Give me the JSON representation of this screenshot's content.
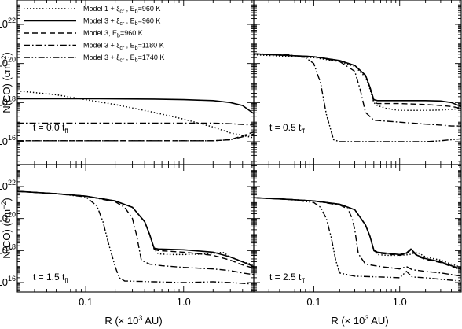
{
  "chart_data": {
    "type": "line",
    "ylabel": "N(CO)  (cm",
    "ylabel_sup": "−2",
    "ylabel_close": ")",
    "xlabel": "R  (× 10",
    "xlabel_sup": "3",
    "xlabel_close": " AU)",
    "x_scale": "log",
    "y_scale": "log",
    "xlim": [
      0.02,
      5.2
    ],
    "ylim": [
      5000000000000000.0,
      1e+23
    ],
    "x_ticks": [
      {
        "v": 0.1,
        "label": "0.1"
      },
      {
        "v": 1.0,
        "label": "1.0"
      }
    ],
    "y_ticks": [
      {
        "v": 1e+16,
        "base": "10",
        "exp": "16"
      },
      {
        "v": 1e+18,
        "base": "10",
        "exp": "18"
      },
      {
        "v": 1e+20,
        "base": "10",
        "exp": "20"
      },
      {
        "v": 1e+22,
        "base": "10",
        "exp": "22"
      }
    ],
    "legend": [
      {
        "style": "dotted",
        "text": "Model 1 + ξ",
        "sub": "cr",
        "rest": " , E",
        "esub": "b",
        "eval": "=960 K"
      },
      {
        "style": "solid",
        "text": "Model 3 + ξ",
        "sub": "cr",
        "rest": " , E",
        "esub": "b",
        "eval": "=960 K"
      },
      {
        "style": "dashed",
        "text": "Model 3, E",
        "sub": "",
        "rest": "",
        "esub": "b",
        "eval": "=960  K"
      },
      {
        "style": "dashdot",
        "text": "Model 3 + ξ",
        "sub": "cr",
        "rest": " , E",
        "esub": "b",
        "eval": "=1180 K"
      },
      {
        "style": "dashdotdot",
        "text": "Model 3 + ξ",
        "sub": "cr",
        "rest": " , E",
        "esub": "b",
        "eval": "=1740 K"
      }
    ],
    "panels": [
      {
        "time": "t = 0.0 t",
        "time_sub": "ff",
        "series": [
          {
            "style": "dotted",
            "x": [
              0.02,
              0.05,
              0.1,
              0.2,
              0.5,
              1,
              2,
              3,
              5.2
            ],
            "logy": [
              18.6,
              18.4,
              18.15,
              17.9,
              17.5,
              17.15,
              16.75,
              16.45,
              16.2
            ]
          },
          {
            "style": "solid",
            "x": [
              0.02,
              0.1,
              0.5,
              1,
              2,
              3,
              4,
              5,
              5.2
            ],
            "logy": [
              18.2,
              18.2,
              18.18,
              18.15,
              18.1,
              18.0,
              17.85,
              17.5,
              17.45
            ]
          },
          {
            "style": "dashed",
            "x": [
              0.02,
              0.5,
              1,
              2,
              3,
              4,
              5.2
            ],
            "logy": [
              16.05,
              16.05,
              16.05,
              16.05,
              16.1,
              16.3,
              16.5
            ]
          },
          {
            "style": "dashdot",
            "x": [
              0.02,
              0.5,
              1,
              2,
              3,
              5.2
            ],
            "logy": [
              16.95,
              16.95,
              16.95,
              16.95,
              16.92,
              16.85
            ]
          },
          {
            "style": "dashdotdot",
            "x": [
              0.02,
              1,
              2,
              3,
              4,
              5.2
            ],
            "logy": [
              16.05,
              16.05,
              16.05,
              16.1,
              16.25,
              16.4
            ]
          }
        ]
      },
      {
        "time": "t = 0.5 t",
        "time_sub": "ff",
        "series": [
          {
            "style": "dotted",
            "x": [
              0.02,
              0.1,
              0.2,
              0.3,
              0.4,
              0.45,
              0.5,
              0.55,
              0.7,
              1,
              2,
              3,
              4,
              5.2
            ],
            "logy": [
              20.45,
              20.3,
              20.1,
              19.85,
              19.3,
              18.7,
              18.0,
              17.85,
              17.7,
              17.6,
              17.6,
              17.62,
              17.65,
              17.7
            ]
          },
          {
            "style": "solid",
            "x": [
              0.02,
              0.1,
              0.2,
              0.3,
              0.4,
              0.45,
              0.5,
              0.55,
              1,
              2,
              3,
              4,
              5.2
            ],
            "logy": [
              20.5,
              20.35,
              20.15,
              19.9,
              19.4,
              18.8,
              18.15,
              18.1,
              18.1,
              18.1,
              18.08,
              18.0,
              17.8
            ]
          },
          {
            "style": "dashed",
            "x": [
              0.02,
              0.1,
              0.2,
              0.3,
              0.4,
              0.45,
              0.5,
              0.55,
              1,
              2,
              3,
              4,
              5.2
            ],
            "logy": [
              20.5,
              20.35,
              20.15,
              19.9,
              19.4,
              18.8,
              18.05,
              17.95,
              17.95,
              17.9,
              17.85,
              17.8,
              17.7
            ]
          },
          {
            "style": "dashdot",
            "x": [
              0.02,
              0.1,
              0.2,
              0.3,
              0.35,
              0.4,
              0.5,
              1,
              2,
              3,
              4,
              5.2
            ],
            "logy": [
              20.5,
              20.35,
              20.1,
              19.6,
              18.6,
              17.5,
              17.1,
              17.0,
              16.9,
              16.85,
              16.8,
              16.8
            ]
          },
          {
            "style": "dashdotdot",
            "x": [
              0.02,
              0.05,
              0.08,
              0.1,
              0.12,
              0.14,
              0.17,
              0.2,
              0.5,
              1,
              2,
              3,
              4,
              5.2
            ],
            "logy": [
              20.5,
              20.45,
              20.3,
              20.0,
              19.0,
              17.4,
              16.1,
              16.0,
              16.0,
              16.0,
              16.0,
              16.05,
              16.1,
              16.15
            ]
          }
        ]
      },
      {
        "time": "t = 1.5 t",
        "time_sub": "ff",
        "series": [
          {
            "style": "dotted",
            "x": [
              0.02,
              0.05,
              0.1,
              0.2,
              0.3,
              0.4,
              0.45,
              0.5,
              0.55,
              0.7,
              1,
              2,
              2.5,
              3,
              4,
              5.2
            ],
            "logy": [
              21.7,
              21.55,
              21.4,
              21.1,
              20.7,
              19.8,
              19.0,
              18.1,
              17.8,
              17.75,
              17.75,
              17.8,
              17.9,
              17.6,
              17.3,
              17.1
            ]
          },
          {
            "style": "solid",
            "x": [
              0.02,
              0.05,
              0.1,
              0.2,
              0.3,
              0.4,
              0.45,
              0.5,
              0.55,
              1,
              2,
              3,
              4,
              5.2
            ],
            "logy": [
              21.7,
              21.55,
              21.4,
              21.1,
              20.7,
              19.8,
              19.0,
              18.15,
              18.1,
              18.05,
              17.9,
              17.6,
              17.3,
              17.0
            ]
          },
          {
            "style": "dashed",
            "x": [
              0.02,
              0.05,
              0.1,
              0.2,
              0.3,
              0.4,
              0.45,
              0.5,
              0.55,
              1,
              2,
              3,
              4,
              5.2
            ],
            "logy": [
              21.7,
              21.55,
              21.4,
              21.1,
              20.7,
              19.8,
              19.0,
              18.1,
              18.0,
              17.9,
              17.7,
              17.4,
              17.1,
              16.9
            ]
          },
          {
            "style": "dashdot",
            "x": [
              0.02,
              0.05,
              0.1,
              0.2,
              0.25,
              0.3,
              0.33,
              0.37,
              0.45,
              0.6,
              1,
              2,
              3,
              4,
              5.2
            ],
            "logy": [
              21.7,
              21.55,
              21.4,
              21.05,
              20.7,
              20.0,
              19.0,
              17.4,
              17.15,
              17.05,
              16.95,
              16.85,
              16.75,
              16.6,
              16.5
            ]
          },
          {
            "style": "dashdotdot",
            "x": [
              0.02,
              0.05,
              0.1,
              0.13,
              0.15,
              0.17,
              0.2,
              0.22,
              0.25,
              0.5,
              1,
              2,
              3,
              4,
              5.2
            ],
            "logy": [
              21.7,
              21.55,
              21.35,
              20.8,
              19.8,
              18.5,
              17.0,
              16.3,
              16.1,
              16.05,
              16.0,
              16.05,
              16.0,
              15.95,
              15.9
            ]
          }
        ]
      },
      {
        "time": "t = 2.5 t",
        "time_sub": "ff",
        "series": [
          {
            "style": "dotted",
            "x": [
              0.02,
              0.05,
              0.1,
              0.2,
              0.3,
              0.4,
              0.45,
              0.5,
              0.55,
              0.7,
              1,
              1.3,
              1.6,
              2,
              3,
              4,
              5.2
            ],
            "logy": [
              21.3,
              21.2,
              21.1,
              20.9,
              20.55,
              19.6,
              18.9,
              18.0,
              17.75,
              17.7,
              17.7,
              17.75,
              17.9,
              17.6,
              17.4,
              17.15,
              16.95
            ]
          },
          {
            "style": "solid",
            "x": [
              0.02,
              0.05,
              0.1,
              0.2,
              0.3,
              0.4,
              0.45,
              0.5,
              0.55,
              1,
              1.2,
              1.35,
              1.6,
              2,
              3,
              4,
              5.2
            ],
            "logy": [
              21.3,
              21.2,
              21.1,
              20.9,
              20.55,
              19.6,
              18.9,
              18.05,
              17.9,
              17.75,
              17.85,
              18.1,
              17.7,
              17.5,
              17.3,
              17.05,
              16.85
            ]
          },
          {
            "style": "dashed",
            "x": [
              0.02,
              0.05,
              0.1,
              0.2,
              0.3,
              0.4,
              0.45,
              0.5,
              0.55,
              1,
              1.2,
              1.35,
              1.6,
              2,
              3,
              4,
              5.2
            ],
            "logy": [
              21.3,
              21.2,
              21.1,
              20.9,
              20.55,
              19.6,
              18.9,
              18.0,
              17.85,
              17.7,
              17.8,
              18.05,
              17.65,
              17.45,
              17.25,
              17.0,
              16.8
            ]
          },
          {
            "style": "dashdot",
            "x": [
              0.02,
              0.05,
              0.1,
              0.2,
              0.25,
              0.28,
              0.3,
              0.33,
              0.4,
              0.6,
              1,
              1.2,
              1.4,
              2,
              3,
              4,
              5.2
            ],
            "logy": [
              21.3,
              21.2,
              21.1,
              20.85,
              20.6,
              20.0,
              19.3,
              17.8,
              17.15,
              17.0,
              16.85,
              17.0,
              16.8,
              16.7,
              16.6,
              16.5,
              16.4
            ]
          },
          {
            "style": "dashdotdot",
            "x": [
              0.02,
              0.05,
              0.1,
              0.12,
              0.14,
              0.16,
              0.18,
              0.2,
              0.3,
              0.6,
              1,
              1.2,
              1.4,
              2,
              3,
              4,
              5.2
            ],
            "logy": [
              21.3,
              21.2,
              21.0,
              20.7,
              20.0,
              18.8,
              17.4,
              16.6,
              16.4,
              16.35,
              16.3,
              16.7,
              16.35,
              16.3,
              16.2,
              16.15,
              16.1
            ]
          }
        ]
      }
    ]
  }
}
